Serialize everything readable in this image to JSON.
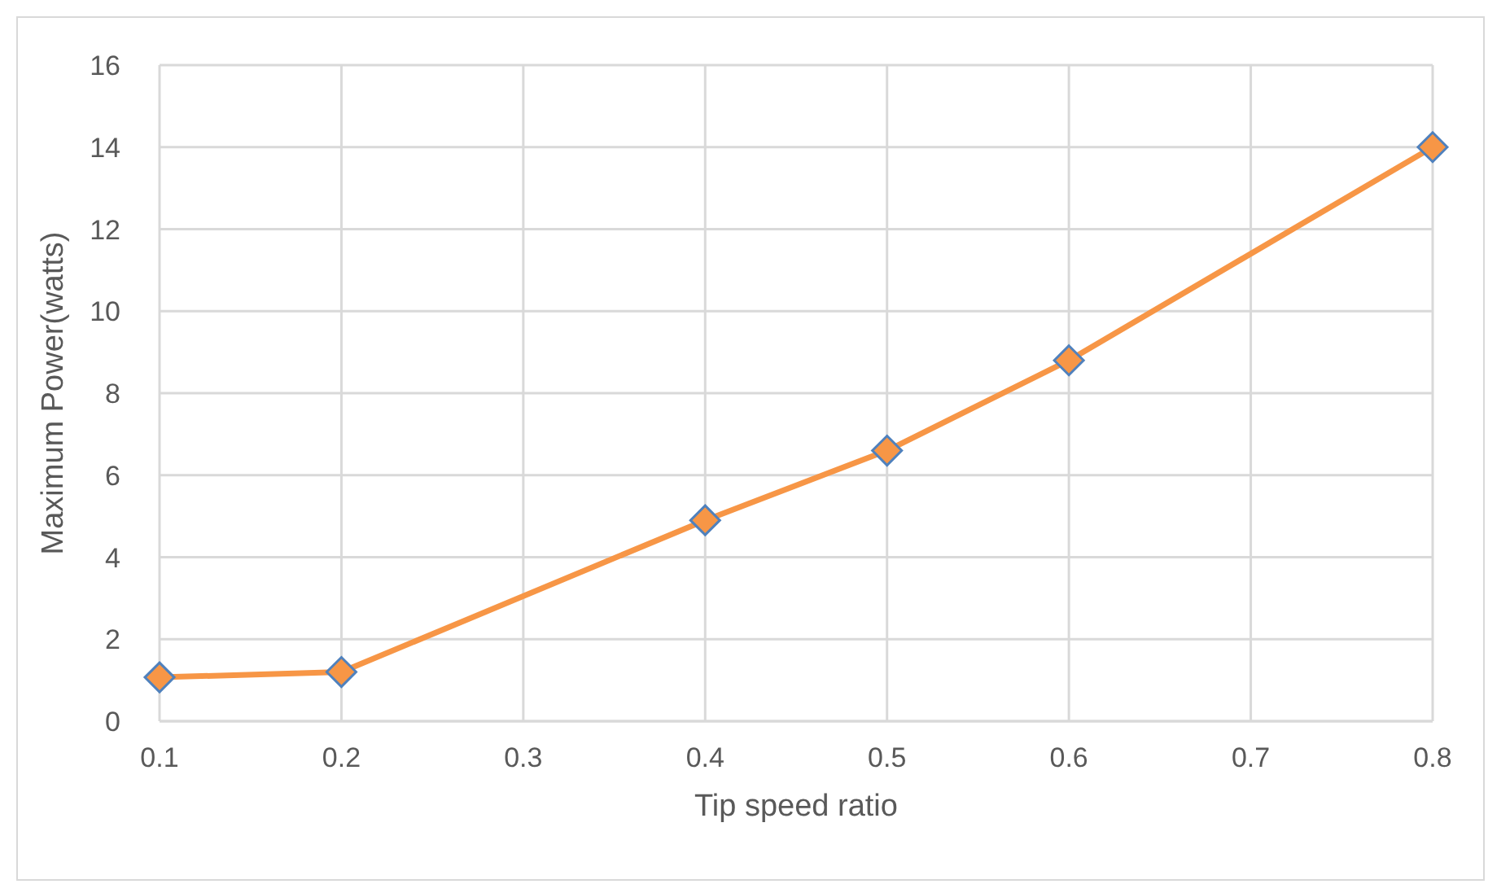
{
  "chart_data": {
    "type": "line",
    "xlabel": "Tip speed ratio",
    "ylabel": "Maximum Power(watts)",
    "x": [
      0.1,
      0.2,
      0.4,
      0.5,
      0.6,
      0.8
    ],
    "series": [
      {
        "color": "#f79646",
        "values": [
          1.07,
          1.2,
          4.9,
          6.6,
          8.8,
          14.0
        ]
      }
    ],
    "xlim": [
      0.1,
      0.8
    ],
    "xticks": [
      0.1,
      0.2,
      0.3,
      0.4,
      0.5,
      0.6,
      0.7,
      0.8
    ],
    "ylim": [
      0,
      16
    ],
    "yticks": [
      0,
      2,
      4,
      6,
      8,
      10,
      12,
      14,
      16
    ],
    "grid": true,
    "marker": "diamond",
    "line_style": "solid",
    "legend": false
  }
}
